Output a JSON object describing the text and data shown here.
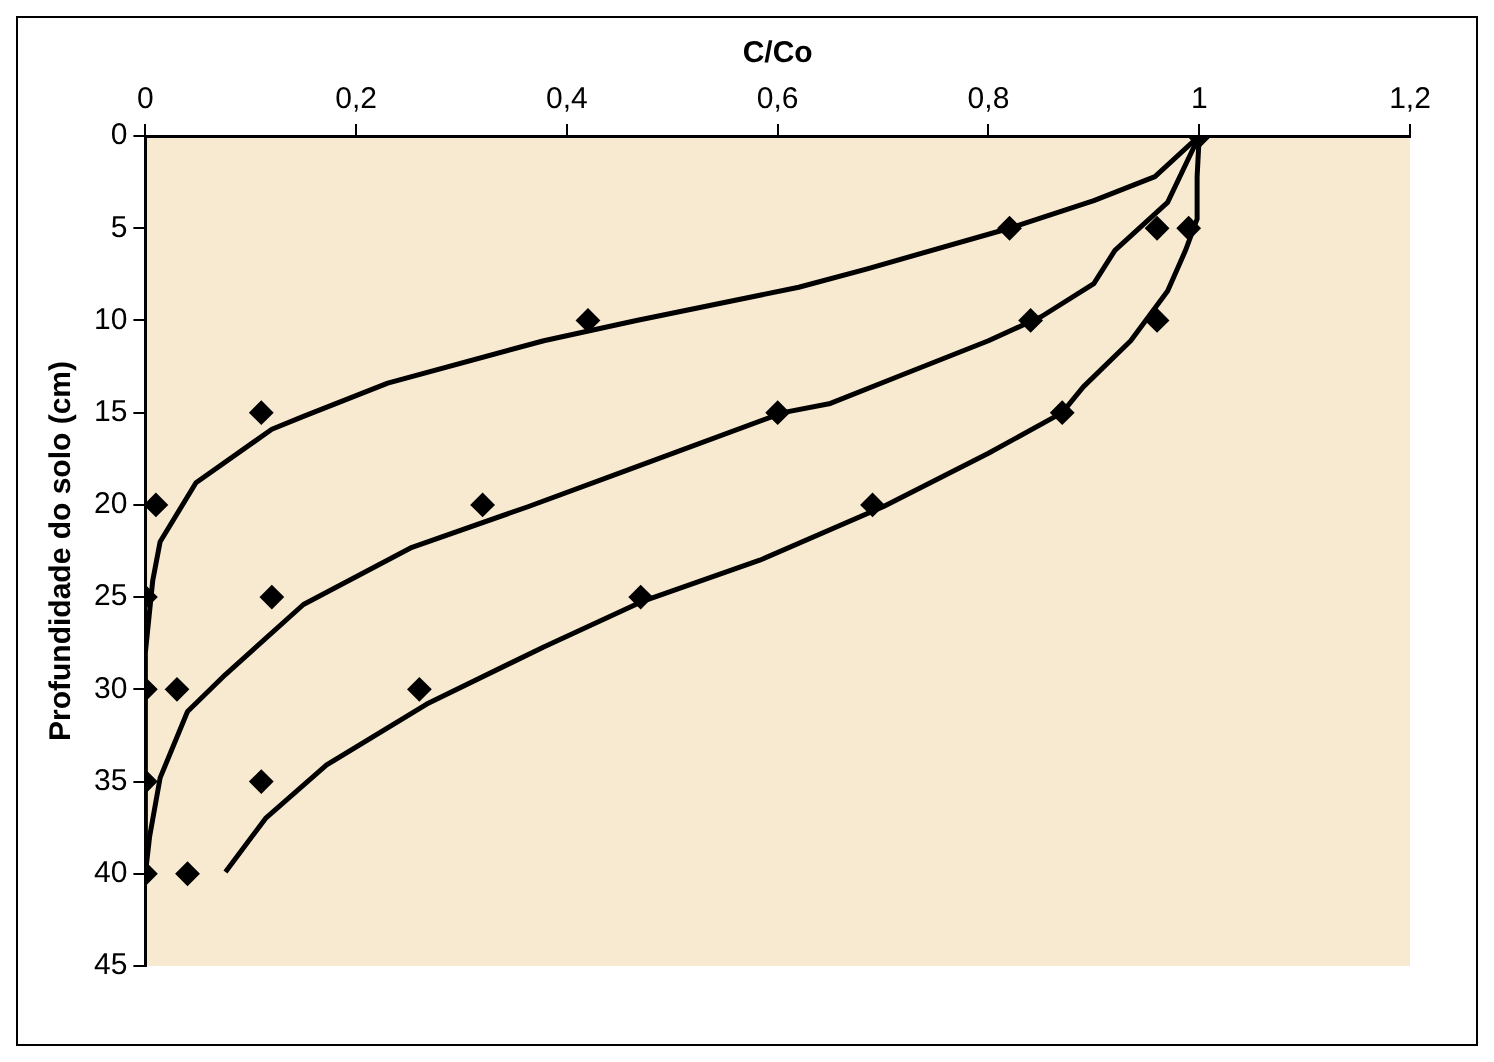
{
  "chart_data": {
    "type": "line",
    "xlabel": "C/Co",
    "ylabel": "Profundidade do solo (cm)",
    "xlim": [
      0,
      1.2
    ],
    "xticks": [
      0,
      {
        "value": 0.2,
        "label": "0,2"
      },
      {
        "value": 0.4,
        "label": "0,4"
      },
      {
        "value": 0.6,
        "label": "0,6"
      },
      {
        "value": 0.8,
        "label": "0,8"
      },
      1,
      {
        "value": 1.2,
        "label": "1,2"
      }
    ],
    "ylim": [
      45,
      0
    ],
    "yticks": [
      0,
      5,
      10,
      15,
      20,
      25,
      30,
      35,
      40,
      45
    ],
    "grid": false,
    "legend": false,
    "series": [
      {
        "type": "line",
        "color": "#000000",
        "marker": "none",
        "line_style": "solid",
        "x": [
          1,
          0.958,
          0.9,
          0.82,
          0.685,
          0.62,
          0.466,
          0.378,
          0.23,
          0.15,
          0.12,
          0.048,
          0.014,
          0.007,
          0,
          0
        ],
        "values": [
          0,
          2.2,
          3.5,
          5,
          7.2,
          8.2,
          10,
          11.1,
          13.4,
          15.2,
          15.9,
          18.8,
          22,
          24.1,
          28,
          40
        ]
      },
      {
        "type": "line",
        "color": "#000000",
        "marker": "none",
        "line_style": "solid",
        "x": [
          1,
          0.97,
          0.92,
          0.9,
          0.85,
          0.8,
          0.716,
          0.65,
          0.605,
          0.458,
          0.363,
          0.253,
          0.15,
          0.076,
          0.04,
          0.014,
          0.004,
          0
        ],
        "values": [
          0,
          3.6,
          6.2,
          8,
          9.8,
          11.1,
          13,
          14.5,
          15,
          18.1,
          20.1,
          22.3,
          25.4,
          29.2,
          31.2,
          34.8,
          38,
          40
        ]
      },
      {
        "type": "line",
        "color": "#000000",
        "marker": "none",
        "line_style": "solid",
        "x": [
          1,
          0.998,
          0.998,
          0.987,
          0.97,
          0.935,
          0.89,
          0.87,
          0.8,
          0.7,
          0.583,
          0.473,
          0.378,
          0.267,
          0.172,
          0.114,
          0.076
        ],
        "values": [
          0,
          2.2,
          4.5,
          6.2,
          8.4,
          11.1,
          13.6,
          15,
          17.2,
          20.1,
          23,
          25.2,
          27.7,
          30.8,
          34.1,
          37,
          39.9
        ]
      },
      {
        "type": "scatter",
        "color": "#000000",
        "marker": "diamond",
        "x": [
          1,
          0.82,
          0.42,
          0.11,
          0.01,
          0,
          0,
          0,
          0,
          0.96,
          0.84,
          0.6,
          0.32,
          0.12,
          0.03,
          0.99,
          0.96,
          0.87,
          0.69,
          0.47,
          0.26,
          0.11,
          0.04
        ],
        "values": [
          0,
          5,
          10,
          15,
          20,
          25,
          30,
          35,
          40,
          5,
          10,
          15,
          20,
          25,
          30,
          5,
          10,
          15,
          20,
          25,
          30,
          35,
          40
        ]
      }
    ]
  }
}
